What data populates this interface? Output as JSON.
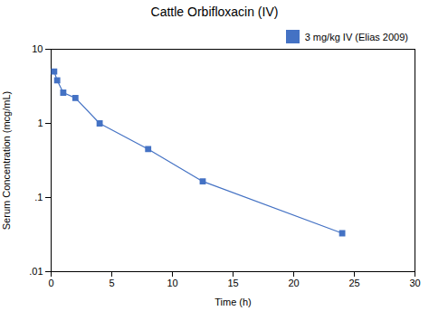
{
  "chart_data": {
    "type": "line",
    "title": "Cattle Orbifloxacin (IV)",
    "xlabel": "Time (h)",
    "ylabel": "Serum Concentration (mcg/mL)",
    "x": [
      0.25,
      0.5,
      1.0,
      2.0,
      4.0,
      8.0,
      12.5,
      24.0
    ],
    "series": [
      {
        "name": "3 mg/kg IV (Elias 2009)",
        "color": "#4472C4",
        "marker": "square",
        "values": [
          5.0,
          3.8,
          2.6,
          2.2,
          1.0,
          0.45,
          0.165,
          0.033
        ]
      }
    ],
    "xlim": [
      0,
      30
    ],
    "ylim": [
      0.01,
      10
    ],
    "xticks": [
      0,
      5,
      10,
      15,
      20,
      25,
      30
    ],
    "yticks": [
      {
        "value": 0.01,
        "label": ".01"
      },
      {
        "value": 0.1,
        "label": ".1"
      },
      1,
      10
    ],
    "log": "y",
    "grid": false,
    "legend": "upper right"
  }
}
